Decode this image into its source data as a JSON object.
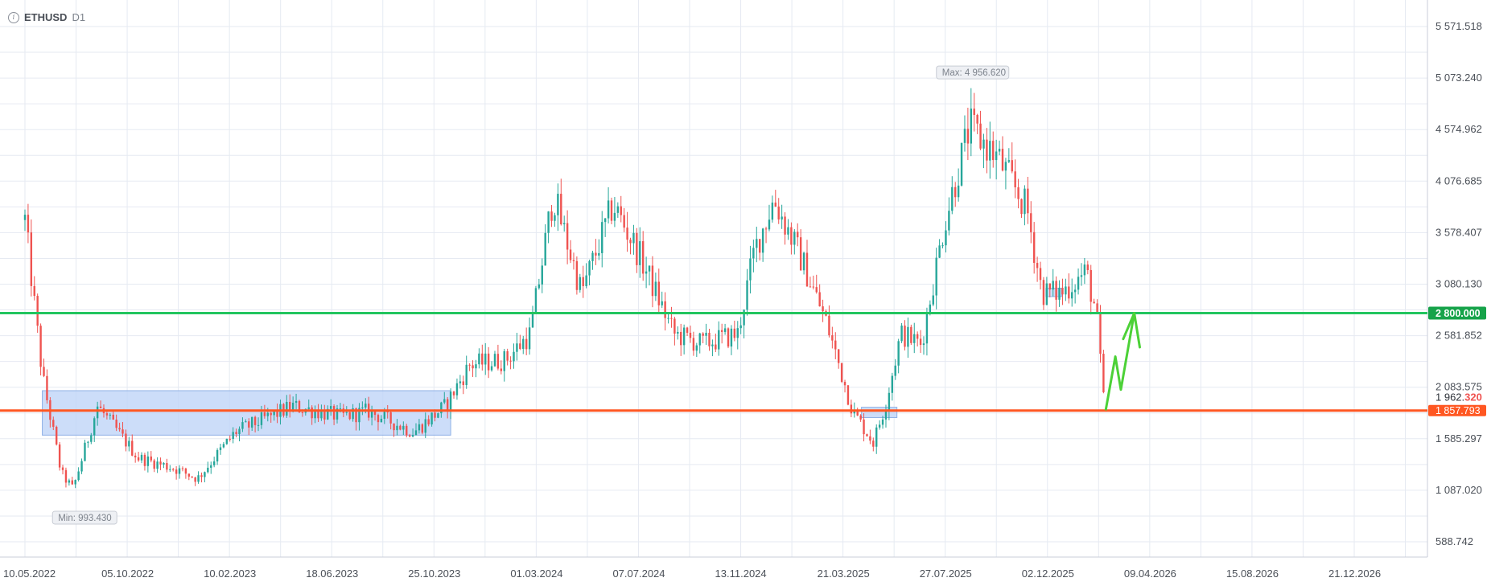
{
  "legend": {
    "symbol": "ETHUSD",
    "timeframe": "D1",
    "icon": "info-icon"
  },
  "colors": {
    "up": "#26a69a",
    "down": "#ef5350",
    "support": "#ff5722",
    "resistance": "#22c55e",
    "zone": "#bfd4f7",
    "zone_border": "#8fb0e6",
    "grid": "#e6eaf2",
    "arrow": "#4cd137"
  },
  "chart_data": {
    "type": "candlestick",
    "y_ticks": [
      "5 571.518",
      "5 073.240",
      "4 574.962",
      "4 076.685",
      "3 578.407",
      "3 080.130",
      "2 581.852",
      "2 083.575",
      "1 585.297",
      "1 087.020",
      "588.742"
    ],
    "x_ticks": [
      "10.05.2022",
      "05.10.2022",
      "10.02.2023",
      "18.06.2023",
      "25.10.2023",
      "01.03.2024",
      "07.07.2024",
      "13.11.2024",
      "21.03.2025",
      "27.07.2025",
      "02.12.2025",
      "09.04.2026",
      "15.08.2026",
      "21.12.2026"
    ],
    "ylim": [
      588.742,
      5571.518
    ],
    "series": [
      {
        "price": 3700,
        "date": "10.05.2022"
      },
      {
        "price": 2200,
        "date": "2022-06-01"
      },
      {
        "price": 1250,
        "date": "2022-06-25"
      },
      {
        "price": 1100,
        "date": "2022-07-10"
      },
      {
        "price": 1900,
        "date": "2022-08-10"
      },
      {
        "price": 1400,
        "date": "2022-10-01"
      },
      {
        "price": 1300,
        "date": "2022-11-15"
      },
      {
        "price": 1200,
        "date": "2022-12-15"
      },
      {
        "price": 1650,
        "date": "2023-02-01"
      },
      {
        "price": 1900,
        "date": "2023-04-15"
      },
      {
        "price": 1800,
        "date": "2023-06-15"
      },
      {
        "price": 1850,
        "date": "2023-07-20"
      },
      {
        "price": 1650,
        "date": "2023-09-15"
      },
      {
        "price": 1900,
        "date": "2023-10-25"
      },
      {
        "price": 2300,
        "date": "2023-11-25"
      },
      {
        "price": 2350,
        "date": "2024-01-10"
      },
      {
        "price": 2600,
        "date": "2024-02-10"
      },
      {
        "price": 3950,
        "date": "2024-03-10"
      },
      {
        "price": 3000,
        "date": "2024-04-15"
      },
      {
        "price": 3850,
        "date": "2024-05-25"
      },
      {
        "price": 3400,
        "date": "2024-06-25"
      },
      {
        "price": 2600,
        "date": "2024-08-10"
      },
      {
        "price": 2500,
        "date": "2024-09-15"
      },
      {
        "price": 2600,
        "date": "2024-10-30"
      },
      {
        "price": 3400,
        "date": "2024-11-20"
      },
      {
        "price": 3900,
        "date": "2024-12-15"
      },
      {
        "price": 3300,
        "date": "2025-01-20"
      },
      {
        "price": 2700,
        "date": "2025-02-20"
      },
      {
        "price": 1850,
        "date": "2025-03-25"
      },
      {
        "price": 1550,
        "date": "2025-04-20"
      },
      {
        "price": 1900,
        "date": "2025-05-05"
      },
      {
        "price": 2600,
        "date": "2025-05-25"
      },
      {
        "price": 2500,
        "date": "2025-06-20"
      },
      {
        "price": 3700,
        "date": "2025-07-20"
      },
      {
        "price": 4600,
        "date": "2025-08-20"
      },
      {
        "price": 4300,
        "date": "2025-09-25"
      },
      {
        "price": 3800,
        "date": "2025-11-01"
      },
      {
        "price": 3000,
        "date": "2025-11-20"
      },
      {
        "price": 3000,
        "date": "2025-12-15"
      },
      {
        "price": 3200,
        "date": "2026-01-15"
      },
      {
        "price": 2800,
        "date": "2026-01-28"
      },
      {
        "price": 1962,
        "date": "2026-02-06"
      }
    ],
    "max_label": "Max: 4 956.620",
    "min_label": "Min: 993.430",
    "max_value": 4956.62,
    "max_date": "2025-08-24",
    "min_value": 993.43,
    "min_date": "2022-06-18",
    "last_price": {
      "main": "1 962.",
      "highlight": "320",
      "value": 1962.32
    },
    "support": {
      "label": "1 857.793",
      "value": 1857.793
    },
    "resistance": {
      "label": "2 800.000",
      "value": 2800.0
    },
    "zones": [
      {
        "from": "2022-06-01",
        "to": "2023-11-01",
        "low": 1620,
        "high": 2050
      },
      {
        "from": "2025-04-05",
        "to": "2025-05-20",
        "low": 1790,
        "high": 1890
      },
      {
        "from": "2025-11-25",
        "to": "2025-12-15",
        "low": 2960,
        "high": 3040
      }
    ],
    "projection": [
      {
        "date": "2026-02-09",
        "price": 1870
      },
      {
        "date": "2026-02-21",
        "price": 2380
      },
      {
        "date": "2026-02-28",
        "price": 2060
      },
      {
        "date": "2026-03-17",
        "price": 2800
      }
    ],
    "arrow_head": [
      {
        "date": "2026-03-03",
        "price": 2550
      },
      {
        "date": "2026-03-17",
        "price": 2800
      },
      {
        "date": "2026-03-24",
        "price": 2470
      }
    ]
  }
}
